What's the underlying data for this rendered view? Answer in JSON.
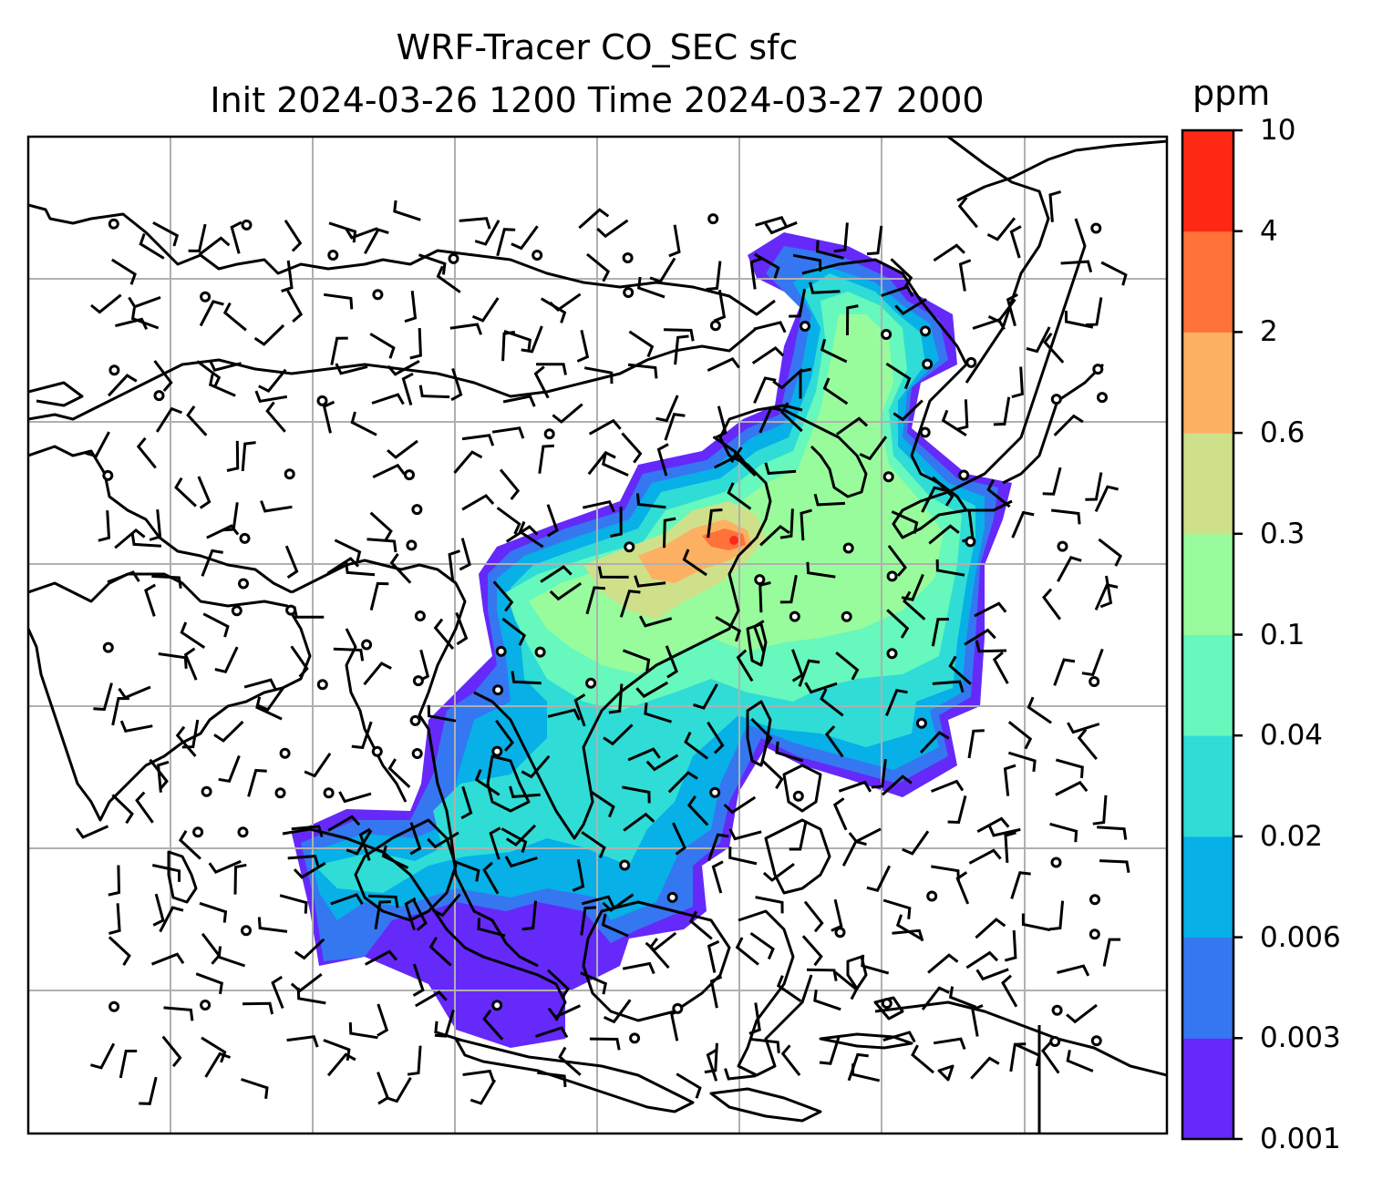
{
  "title": {
    "line1": "WRF-Tracer CO_SEC sfc",
    "line2": "Init 2024-03-26 1200 Time 2024-03-27 2000"
  },
  "colorbar": {
    "label": "ppm",
    "ticks": [
      "0.001",
      "0.003",
      "0.006",
      "0.02",
      "0.04",
      "0.1",
      "0.3",
      "0.6",
      "2",
      "4",
      "10"
    ],
    "colors": [
      "#6529fa",
      "#3577f0",
      "#07b0e6",
      "#30dcd6",
      "#66f8bc",
      "#98fc9c",
      "#cfe08a",
      "#fcb062",
      "#ff7239",
      "#ff2913"
    ]
  },
  "map": {
    "field": "CO_SEC",
    "level": "sfc",
    "gridlines": true,
    "wind_barbs": true,
    "coastlines": true
  }
}
